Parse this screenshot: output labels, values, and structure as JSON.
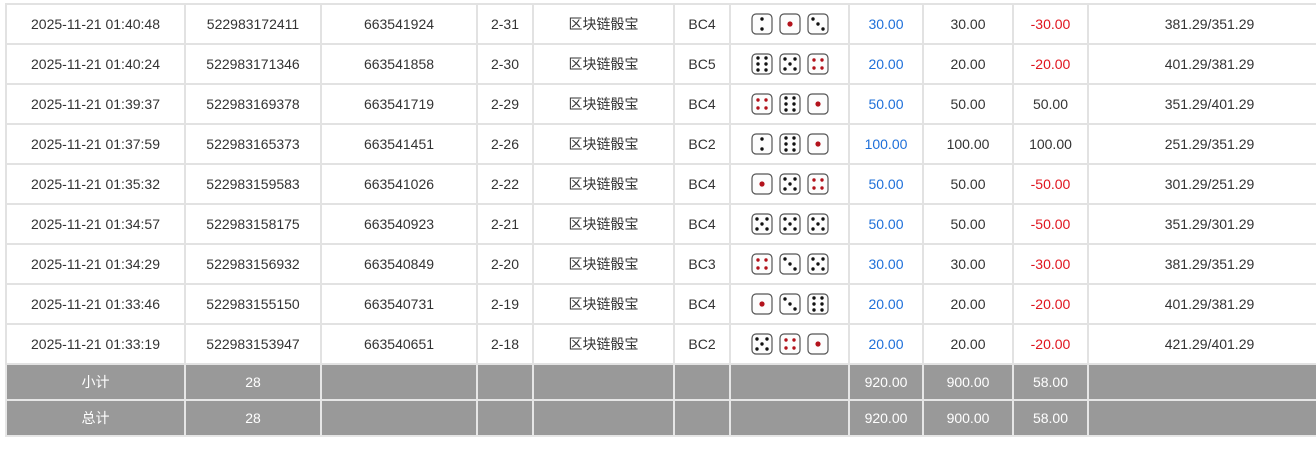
{
  "rows": [
    {
      "time": "2025-11-21 01:40:48",
      "order_no": "522983172411",
      "issue_id": "663541924",
      "period": "2-31",
      "game": "区块链骰宝",
      "table": "BC4",
      "dice": [
        2,
        1,
        3
      ],
      "bet": "30.00",
      "valid": "30.00",
      "win": "-30.00",
      "balance": "381.29/351.29",
      "win_sign": "neg"
    },
    {
      "time": "2025-11-21 01:40:24",
      "order_no": "522983171346",
      "issue_id": "663541858",
      "period": "2-30",
      "game": "区块链骰宝",
      "table": "BC5",
      "dice": [
        6,
        5,
        4
      ],
      "bet": "20.00",
      "valid": "20.00",
      "win": "-20.00",
      "balance": "401.29/381.29",
      "win_sign": "neg"
    },
    {
      "time": "2025-11-21 01:39:37",
      "order_no": "522983169378",
      "issue_id": "663541719",
      "period": "2-29",
      "game": "区块链骰宝",
      "table": "BC4",
      "dice": [
        4,
        6,
        1
      ],
      "bet": "50.00",
      "valid": "50.00",
      "win": "50.00",
      "balance": "351.29/401.29",
      "win_sign": "pos"
    },
    {
      "time": "2025-11-21 01:37:59",
      "order_no": "522983165373",
      "issue_id": "663541451",
      "period": "2-26",
      "game": "区块链骰宝",
      "table": "BC2",
      "dice": [
        2,
        6,
        1
      ],
      "bet": "100.00",
      "valid": "100.00",
      "win": "100.00",
      "balance": "251.29/351.29",
      "win_sign": "pos"
    },
    {
      "time": "2025-11-21 01:35:32",
      "order_no": "522983159583",
      "issue_id": "663541026",
      "period": "2-22",
      "game": "区块链骰宝",
      "table": "BC4",
      "dice": [
        1,
        5,
        4
      ],
      "bet": "50.00",
      "valid": "50.00",
      "win": "-50.00",
      "balance": "301.29/251.29",
      "win_sign": "neg"
    },
    {
      "time": "2025-11-21 01:34:57",
      "order_no": "522983158175",
      "issue_id": "663540923",
      "period": "2-21",
      "game": "区块链骰宝",
      "table": "BC4",
      "dice": [
        5,
        5,
        5
      ],
      "bet": "50.00",
      "valid": "50.00",
      "win": "-50.00",
      "balance": "351.29/301.29",
      "win_sign": "neg"
    },
    {
      "time": "2025-11-21 01:34:29",
      "order_no": "522983156932",
      "issue_id": "663540849",
      "period": "2-20",
      "game": "区块链骰宝",
      "table": "BC3",
      "dice": [
        4,
        3,
        5
      ],
      "bet": "30.00",
      "valid": "30.00",
      "win": "-30.00",
      "balance": "381.29/351.29",
      "win_sign": "neg"
    },
    {
      "time": "2025-11-21 01:33:46",
      "order_no": "522983155150",
      "issue_id": "663540731",
      "period": "2-19",
      "game": "区块链骰宝",
      "table": "BC4",
      "dice": [
        1,
        3,
        6
      ],
      "bet": "20.00",
      "valid": "20.00",
      "win": "-20.00",
      "balance": "401.29/381.29",
      "win_sign": "neg"
    },
    {
      "time": "2025-11-21 01:33:19",
      "order_no": "522983153947",
      "issue_id": "663540651",
      "period": "2-18",
      "game": "区块链骰宝",
      "table": "BC2",
      "dice": [
        5,
        4,
        1
      ],
      "bet": "20.00",
      "valid": "20.00",
      "win": "-20.00",
      "balance": "421.29/401.29",
      "win_sign": "neg"
    }
  ],
  "subtotal": {
    "label": "小计",
    "count": "28",
    "bet": "920.00",
    "valid": "900.00",
    "win": "58.00"
  },
  "total": {
    "label": "总计",
    "count": "28",
    "bet": "920.00",
    "valid": "900.00",
    "win": "58.00"
  },
  "colors": {
    "bet": "#1e6fd9",
    "loss": "#e0141e",
    "summary_bg": "#999999",
    "pip_red": "#b3121b",
    "pip_black": "#111111"
  }
}
